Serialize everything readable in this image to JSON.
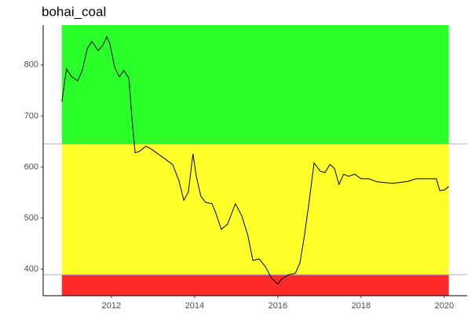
{
  "chart_data": {
    "type": "line",
    "title": "bohai_coal",
    "x": [
      2010.81,
      2010.92,
      2011.04,
      2011.19,
      2011.3,
      2011.42,
      2011.53,
      2011.68,
      2011.79,
      2011.89,
      2011.96,
      2012.08,
      2012.19,
      2012.3,
      2012.42,
      2012.49,
      2012.57,
      2012.68,
      2012.83,
      2012.98,
      2013.13,
      2013.32,
      2013.47,
      2013.62,
      2013.74,
      2013.85,
      2013.96,
      2014.04,
      2014.15,
      2014.26,
      2014.42,
      2014.53,
      2014.64,
      2014.79,
      2014.98,
      2015.13,
      2015.28,
      2015.4,
      2015.55,
      2015.7,
      2015.85,
      2016.0,
      2016.11,
      2016.26,
      2016.42,
      2016.53,
      2016.64,
      2016.75,
      2016.87,
      2017.02,
      2017.13,
      2017.25,
      2017.36,
      2017.47,
      2017.58,
      2017.7,
      2017.85,
      2018.0,
      2018.19,
      2018.38,
      2018.75,
      2019.13,
      2019.32,
      2019.81,
      2019.89,
      2020.0,
      2020.11
    ],
    "series": [
      {
        "color": "#000000",
        "values": [
          728,
          792,
          777,
          769,
          789,
          832,
          846,
          828,
          838,
          855,
          842,
          795,
          777,
          789,
          774,
          697,
          628,
          631,
          641,
          634,
          625,
          614,
          605,
          574,
          535,
          551,
          626,
          582,
          543,
          531,
          528,
          505,
          478,
          488,
          528,
          505,
          466,
          417,
          420,
          405,
          382,
          371,
          382,
          389,
          392,
          412,
          466,
          531,
          608,
          592,
          589,
          605,
          597,
          566,
          586,
          582,
          586,
          577,
          577,
          571,
          568,
          572,
          577,
          577,
          554,
          555,
          562
        ]
      }
    ],
    "xlim": [
      2010.36,
      2020.55
    ],
    "xticks": [
      2012,
      2014,
      2016,
      2018,
      2020
    ],
    "ylim": [
      348,
      878
    ],
    "yticks": [
      400,
      500,
      600,
      700,
      800
    ],
    "thresholds": [
      389,
      645
    ],
    "band_colors": [
      "#ff2a2a",
      "#ffff2a",
      "#2aff2a"
    ],
    "threshold_line_color": "#b3b3b3",
    "grid": false
  }
}
